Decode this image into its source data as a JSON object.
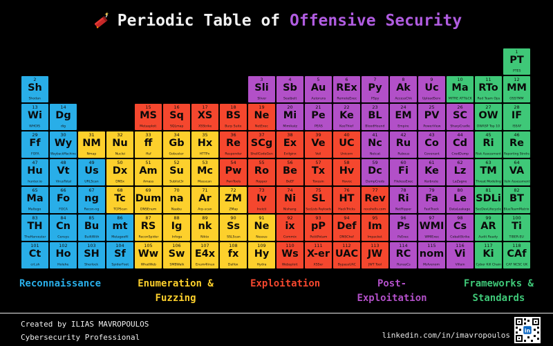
{
  "title": {
    "prefix": "Periodic Table of ",
    "highlight": "Offensive Security",
    "icon": "dynamite-icon"
  },
  "categories": {
    "recon": {
      "label": "Reconnaissance",
      "color": "#29aee8"
    },
    "enum": {
      "label": "Enumeration &\nFuzzing",
      "color": "#fdd02c"
    },
    "exploit": {
      "label": "Exploitation",
      "color": "#f5472e"
    },
    "postexploit": {
      "label": "Post-\nExploitation",
      "color": "#b250c8"
    },
    "frameworks": {
      "label": "Frameworks &\nStandards",
      "color": "#3fc878"
    }
  },
  "legend_order": [
    "recon",
    "enum",
    "exploit",
    "postexploit",
    "frameworks"
  ],
  "table": {
    "cells": [
      {
        "num": 1,
        "symbol": "PT",
        "name": "PTES",
        "category": "frameworks",
        "row": 1,
        "col": 18
      },
      {
        "num": 2,
        "symbol": "Sh",
        "name": "Shodan",
        "category": "recon",
        "row": 2,
        "col": 1
      },
      {
        "num": 3,
        "symbol": "Sli",
        "name": "Sliver",
        "category": "postexploit",
        "row": 2,
        "col": 9
      },
      {
        "num": 4,
        "symbol": "Sb",
        "name": "Seatbelt",
        "category": "postexploit",
        "row": 2,
        "col": 10
      },
      {
        "num": 5,
        "symbol": "Au",
        "name": "Autoruns",
        "category": "postexploit",
        "row": 2,
        "col": 11
      },
      {
        "num": 6,
        "symbol": "REx",
        "name": "RemoteExec",
        "category": "postexploit",
        "row": 2,
        "col": 12
      },
      {
        "num": 7,
        "symbol": "Py",
        "name": "PSpy",
        "category": "postexploit",
        "row": 2,
        "col": 13
      },
      {
        "num": 8,
        "symbol": "Ak",
        "name": "AccessChk",
        "category": "postexploit",
        "row": 2,
        "col": 14
      },
      {
        "num": 9,
        "symbol": "Uc",
        "name": "UploadServ",
        "category": "postexploit",
        "row": 2,
        "col": 15
      },
      {
        "num": 10,
        "symbol": "Ma",
        "name": "MITRE ATT&CK",
        "category": "frameworks",
        "row": 2,
        "col": 16
      },
      {
        "num": 11,
        "symbol": "RTo",
        "name": "Red Team Ops",
        "category": "frameworks",
        "row": 2,
        "col": 17
      },
      {
        "num": 12,
        "symbol": "MM",
        "name": "OSSTMM",
        "category": "frameworks",
        "row": 2,
        "col": 18
      },
      {
        "num": 13,
        "symbol": "Wi",
        "name": "WHOIS",
        "category": "recon",
        "row": 3,
        "col": 1
      },
      {
        "num": 14,
        "symbol": "Dg",
        "name": "dig",
        "category": "recon",
        "row": 3,
        "col": 2
      },
      {
        "num": 15,
        "symbol": "MS",
        "name": "Metasploit",
        "category": "exploit",
        "row": 3,
        "col": 5
      },
      {
        "num": 16,
        "symbol": "Sq",
        "name": "SQLmap",
        "category": "exploit",
        "row": 3,
        "col": 6
      },
      {
        "num": 17,
        "symbol": "XS",
        "name": "XSStrike",
        "category": "exploit",
        "row": 3,
        "col": 7
      },
      {
        "num": 18,
        "symbol": "BS",
        "name": "Burp Suite",
        "category": "exploit",
        "row": 3,
        "col": 8
      },
      {
        "num": 19,
        "symbol": "Ne",
        "name": "NetExec",
        "category": "exploit",
        "row": 3,
        "col": 9
      },
      {
        "num": 20,
        "symbol": "Mi",
        "name": "Mimikatz",
        "category": "postexploit",
        "row": 3,
        "col": 10
      },
      {
        "num": 21,
        "symbol": "Pe",
        "name": "PEAS",
        "category": "postexploit",
        "row": 3,
        "col": 11
      },
      {
        "num": 22,
        "symbol": "Ke",
        "name": "KeeThief",
        "category": "postexploit",
        "row": 3,
        "col": 12
      },
      {
        "num": 23,
        "symbol": "BL",
        "name": "BloodHound",
        "category": "postexploit",
        "row": 3,
        "col": 13
      },
      {
        "num": 24,
        "symbol": "EM",
        "name": "Empire",
        "category": "postexploit",
        "row": 3,
        "col": 14
      },
      {
        "num": 25,
        "symbol": "PV",
        "name": "PowerView",
        "category": "postexploit",
        "row": 3,
        "col": 15
      },
      {
        "num": 26,
        "symbol": "SC",
        "name": "SharpCradle",
        "category": "postexploit",
        "row": 3,
        "col": 16
      },
      {
        "num": 27,
        "symbol": "OW",
        "name": "OWASP Top 10",
        "category": "frameworks",
        "row": 3,
        "col": 17
      },
      {
        "num": 28,
        "symbol": "IF",
        "name": "ISSAF",
        "category": "frameworks",
        "row": 3,
        "col": 18
      },
      {
        "num": 29,
        "symbol": "Ff",
        "name": "FOFA",
        "category": "recon",
        "row": 4,
        "col": 1
      },
      {
        "num": 30,
        "symbol": "Wy",
        "name": "WaybackMachine",
        "category": "recon",
        "row": 4,
        "col": 2
      },
      {
        "num": 31,
        "symbol": "NM",
        "name": "Nmap",
        "category": "enum",
        "row": 4,
        "col": 3
      },
      {
        "num": 32,
        "symbol": "Nu",
        "name": "Nuclei",
        "category": "enum",
        "row": 4,
        "col": 4
      },
      {
        "num": 33,
        "symbol": "ff",
        "name": "ffuf",
        "category": "enum",
        "row": 4,
        "col": 5
      },
      {
        "num": 34,
        "symbol": "Gb",
        "name": "Gobuster",
        "category": "enum",
        "row": 4,
        "col": 6
      },
      {
        "num": 35,
        "symbol": "Hx",
        "name": "HTTPx",
        "category": "enum",
        "row": 4,
        "col": 7
      },
      {
        "num": 36,
        "symbol": "Re",
        "name": "Responder",
        "category": "exploit",
        "row": 4,
        "col": 8
      },
      {
        "num": 37,
        "symbol": "SCg",
        "name": "ShellCodeGen",
        "category": "exploit",
        "row": 4,
        "col": 9
      },
      {
        "num": 38,
        "symbol": "Ex",
        "name": "Evilginx",
        "category": "exploit",
        "row": 4,
        "col": 10
      },
      {
        "num": 39,
        "symbol": "Ve",
        "name": "Veil",
        "category": "exploit",
        "row": 4,
        "col": 11
      },
      {
        "num": 40,
        "symbol": "UC",
        "name": "Unicorn",
        "category": "exploit",
        "row": 4,
        "col": 12
      },
      {
        "num": 41,
        "symbol": "Nc",
        "name": "Netcat",
        "category": "postexploit",
        "row": 4,
        "col": 13
      },
      {
        "num": 42,
        "symbol": "Ru",
        "name": "Rubeus",
        "category": "postexploit",
        "row": 4,
        "col": 14
      },
      {
        "num": 43,
        "symbol": "Co",
        "name": "Covenant",
        "category": "postexploit",
        "row": 4,
        "col": 15
      },
      {
        "num": 44,
        "symbol": "Cd",
        "name": "CredDump",
        "category": "postexploit",
        "row": 4,
        "col": 16
      },
      {
        "num": 45,
        "symbol": "Ri",
        "name": "Risk Assessment",
        "category": "frameworks",
        "row": 4,
        "col": 17
      },
      {
        "num": 46,
        "symbol": "Re",
        "name": "Reporting Stndrs",
        "category": "frameworks",
        "row": 4,
        "col": 18
      },
      {
        "num": 47,
        "symbol": "Hu",
        "name": "hunter.io",
        "category": "recon",
        "row": 5,
        "col": 1
      },
      {
        "num": 48,
        "symbol": "Vt",
        "name": "VirusTotal",
        "category": "recon",
        "row": 5,
        "col": 2
      },
      {
        "num": 49,
        "symbol": "Us",
        "name": "URLScan",
        "category": "recon",
        "row": 5,
        "col": 3
      },
      {
        "num": 50,
        "symbol": "Dx",
        "name": "DNSx",
        "category": "enum",
        "row": 5,
        "col": 4
      },
      {
        "num": 51,
        "symbol": "Am",
        "name": "Amass",
        "category": "enum",
        "row": 5,
        "col": 5
      },
      {
        "num": 52,
        "symbol": "Su",
        "name": "Sublist3r",
        "category": "enum",
        "row": 5,
        "col": 6
      },
      {
        "num": 53,
        "symbol": "Mc",
        "name": "Masscan",
        "category": "enum",
        "row": 5,
        "col": 7
      },
      {
        "num": 54,
        "symbol": "Pw",
        "name": "PwnTools",
        "category": "exploit",
        "row": 5,
        "col": 8
      },
      {
        "num": 55,
        "symbol": "Ro",
        "name": "Ropper",
        "category": "exploit",
        "row": 5,
        "col": 9
      },
      {
        "num": 56,
        "symbol": "Be",
        "name": "BeEF",
        "category": "exploit",
        "row": 5,
        "col": 10
      },
      {
        "num": 57,
        "symbol": "Tx",
        "name": "Toxssin",
        "category": "exploit",
        "row": 5,
        "col": 11
      },
      {
        "num": 58,
        "symbol": "Hv",
        "name": "Havoc",
        "category": "exploit",
        "row": 5,
        "col": 12
      },
      {
        "num": 59,
        "symbol": "Dc",
        "name": "DumpCreds",
        "category": "postexploit",
        "row": 5,
        "col": 13
      },
      {
        "num": 60,
        "symbol": "Fi",
        "name": "FilelessExec",
        "category": "postexploit",
        "row": 5,
        "col": 14
      },
      {
        "num": 61,
        "symbol": "Ke",
        "name": "Kerbrute",
        "category": "postexploit",
        "row": 5,
        "col": 15
      },
      {
        "num": 62,
        "symbol": "Lz",
        "name": "LaZagne",
        "category": "postexploit",
        "row": 5,
        "col": 16
      },
      {
        "num": 63,
        "symbol": "TM",
        "name": "Threat Modeling",
        "category": "frameworks",
        "row": 5,
        "col": 17
      },
      {
        "num": 64,
        "symbol": "VA",
        "name": "Vuln Assessment",
        "category": "frameworks",
        "row": 5,
        "col": 18
      },
      {
        "num": 65,
        "symbol": "Ma",
        "name": "Maltego",
        "category": "recon",
        "row": 6,
        "col": 1
      },
      {
        "num": 66,
        "symbol": "Fo",
        "name": "FOCA",
        "category": "recon",
        "row": 6,
        "col": 2
      },
      {
        "num": 67,
        "symbol": "ng",
        "name": "Recon-ng",
        "category": "recon",
        "row": 6,
        "col": 3
      },
      {
        "num": 68,
        "symbol": "Tc",
        "name": "TCPScan",
        "category": "enum",
        "row": 6,
        "col": 4
      },
      {
        "num": 69,
        "symbol": "Dum",
        "name": "DNSEnum",
        "category": "enum",
        "row": 6,
        "col": 5
      },
      {
        "num": 70,
        "symbol": "na",
        "name": "Naabu",
        "category": "enum",
        "row": 6,
        "col": 6
      },
      {
        "num": 71,
        "symbol": "Ar",
        "name": "Arp-scan",
        "category": "enum",
        "row": 6,
        "col": 7
      },
      {
        "num": 72,
        "symbol": "ZM",
        "name": "ZMap",
        "category": "enum",
        "row": 6,
        "col": 8
      },
      {
        "num": 73,
        "symbol": "Iv",
        "name": "Invicti",
        "category": "exploit",
        "row": 6,
        "col": 9
      },
      {
        "num": 74,
        "symbol": "Ni",
        "name": "Nishang",
        "category": "exploit",
        "row": 6,
        "col": 10
      },
      {
        "num": 75,
        "symbol": "SL",
        "name": "SecLists Payloads",
        "category": "exploit",
        "row": 6,
        "col": 11
      },
      {
        "num": 76,
        "symbol": "HT",
        "name": "HackTricks",
        "category": "exploit",
        "row": 6,
        "col": 12
      },
      {
        "num": 77,
        "symbol": "Rev",
        "name": "revshells.com",
        "category": "exploit",
        "row": 6,
        "col": 13
      },
      {
        "num": 78,
        "symbol": "Ri",
        "name": "NetRipper",
        "category": "postexploit",
        "row": 6,
        "col": 14
      },
      {
        "num": 79,
        "symbol": "Fa",
        "name": "FastTrack",
        "category": "postexploit",
        "row": 6,
        "col": 15
      },
      {
        "num": 80,
        "symbol": "Le",
        "name": "DataLeakage",
        "category": "postexploit",
        "row": 6,
        "col": 16
      },
      {
        "num": 81,
        "symbol": "SDLi",
        "name": "SecDevLifecycle",
        "category": "frameworks",
        "row": 6,
        "col": 17
      },
      {
        "num": 82,
        "symbol": "BT",
        "name": "BlueTeamMatrix",
        "category": "frameworks",
        "row": 6,
        "col": 18
      },
      {
        "num": 83,
        "symbol": "TH",
        "name": "TheHarvester",
        "category": "recon",
        "row": 7,
        "col": 1
      },
      {
        "num": 84,
        "symbol": "Cn",
        "name": "Censys",
        "category": "recon",
        "row": 7,
        "col": 2
      },
      {
        "num": 85,
        "symbol": "Bu",
        "name": "BuiltWith",
        "category": "recon",
        "row": 7,
        "col": 3
      },
      {
        "num": 86,
        "symbol": "mt",
        "name": "Metagoofil",
        "category": "recon",
        "row": 7,
        "col": 4
      },
      {
        "num": 87,
        "symbol": "RS",
        "name": "ReconSpider",
        "category": "enum",
        "row": 7,
        "col": 5
      },
      {
        "num": 88,
        "symbol": "Ig",
        "name": "Infoga",
        "category": "enum",
        "row": 7,
        "col": 6
      },
      {
        "num": 89,
        "symbol": "nk",
        "name": "Nikto",
        "category": "enum",
        "row": 7,
        "col": 7
      },
      {
        "num": 90,
        "symbol": "Ss",
        "name": "SSLScan",
        "category": "enum",
        "row": 7,
        "col": 8
      },
      {
        "num": 91,
        "symbol": "Ne",
        "name": "Nessus",
        "category": "enum",
        "row": 7,
        "col": 9
      },
      {
        "num": 92,
        "symbol": "ix",
        "name": "Commix",
        "category": "exploit",
        "row": 7,
        "col": 10
      },
      {
        "num": 93,
        "symbol": "pP",
        "name": "PetitPotam",
        "category": "exploit",
        "row": 7,
        "col": 11
      },
      {
        "num": 94,
        "symbol": "Def",
        "name": "DNSChef",
        "category": "exploit",
        "row": 7,
        "col": 12
      },
      {
        "num": 95,
        "symbol": "Im",
        "name": "Impacket",
        "category": "exploit",
        "row": 7,
        "col": 13
      },
      {
        "num": 96,
        "symbol": "Ps",
        "name": "PsExec",
        "category": "postexploit",
        "row": 7,
        "col": 14
      },
      {
        "num": 97,
        "symbol": "WMI",
        "name": "WMIExec",
        "category": "postexploit",
        "row": 7,
        "col": 15
      },
      {
        "num": 98,
        "symbol": "Cs",
        "name": "CobaltStrike",
        "category": "postexploit",
        "row": 7,
        "col": 16
      },
      {
        "num": 99,
        "symbol": "AR",
        "name": "Audit Ready",
        "category": "frameworks",
        "row": 7,
        "col": 17
      },
      {
        "num": 100,
        "symbol": "Ti",
        "name": "TIBER-EU",
        "category": "frameworks",
        "row": 7,
        "col": 18
      },
      {
        "num": 101,
        "symbol": "Ct",
        "name": "crt.sh",
        "category": "recon",
        "row": 8,
        "col": 1
      },
      {
        "num": 102,
        "symbol": "Ho",
        "name": "Holehe",
        "category": "recon",
        "row": 8,
        "col": 2
      },
      {
        "num": 103,
        "symbol": "SH",
        "name": "Sherlock",
        "category": "recon",
        "row": 8,
        "col": 3
      },
      {
        "num": 104,
        "symbol": "Sf",
        "name": "SpiderFoot",
        "category": "recon",
        "row": 8,
        "col": 4
      },
      {
        "num": 105,
        "symbol": "Ww",
        "name": "WhatWeb",
        "category": "enum",
        "row": 8,
        "col": 5
      },
      {
        "num": 106,
        "symbol": "Sw",
        "name": "SMBWalk",
        "category": "enum",
        "row": 8,
        "col": 6
      },
      {
        "num": 107,
        "symbol": "E4x",
        "name": "Enum4linux",
        "category": "enum",
        "row": 8,
        "col": 7
      },
      {
        "num": 108,
        "symbol": "fx",
        "name": "Dalfox",
        "category": "enum",
        "row": 8,
        "col": 8
      },
      {
        "num": 109,
        "symbol": "Hy",
        "name": "Hydra",
        "category": "enum",
        "row": 8,
        "col": 9
      },
      {
        "num": 110,
        "symbol": "Ws",
        "name": "Websploit",
        "category": "exploit",
        "row": 8,
        "col": 10
      },
      {
        "num": 111,
        "symbol": "X-er",
        "name": "XSSer",
        "category": "exploit",
        "row": 8,
        "col": 11
      },
      {
        "num": 112,
        "symbol": "UAC",
        "name": "BypassUAC",
        "category": "exploit",
        "row": 8,
        "col": 12
      },
      {
        "num": 113,
        "symbol": "JW",
        "name": "JWT Tool",
        "category": "exploit",
        "row": 8,
        "col": 13
      },
      {
        "num": 114,
        "symbol": "RC",
        "name": "RunasCs",
        "category": "postexploit",
        "row": 8,
        "col": 14
      },
      {
        "num": 115,
        "symbol": "nom",
        "name": "Msfvenom",
        "category": "postexploit",
        "row": 8,
        "col": 15
      },
      {
        "num": 116,
        "symbol": "Vi",
        "name": "Villain",
        "category": "postexploit",
        "row": 8,
        "col": 16
      },
      {
        "num": 117,
        "symbol": "Ki",
        "name": "Cyber Kill Chain",
        "category": "frameworks",
        "row": 8,
        "col": 17
      },
      {
        "num": 118,
        "symbol": "CAf",
        "name": "CAF NCSC UK",
        "category": "frameworks",
        "row": 8,
        "col": 18
      }
    ]
  },
  "footer": {
    "created_by": "Created by ILIAS MAVROPOULOS",
    "subtitle": "Cybersecurity Professional",
    "linkedin_url": "linkedin.com/in/imavropoulos"
  }
}
